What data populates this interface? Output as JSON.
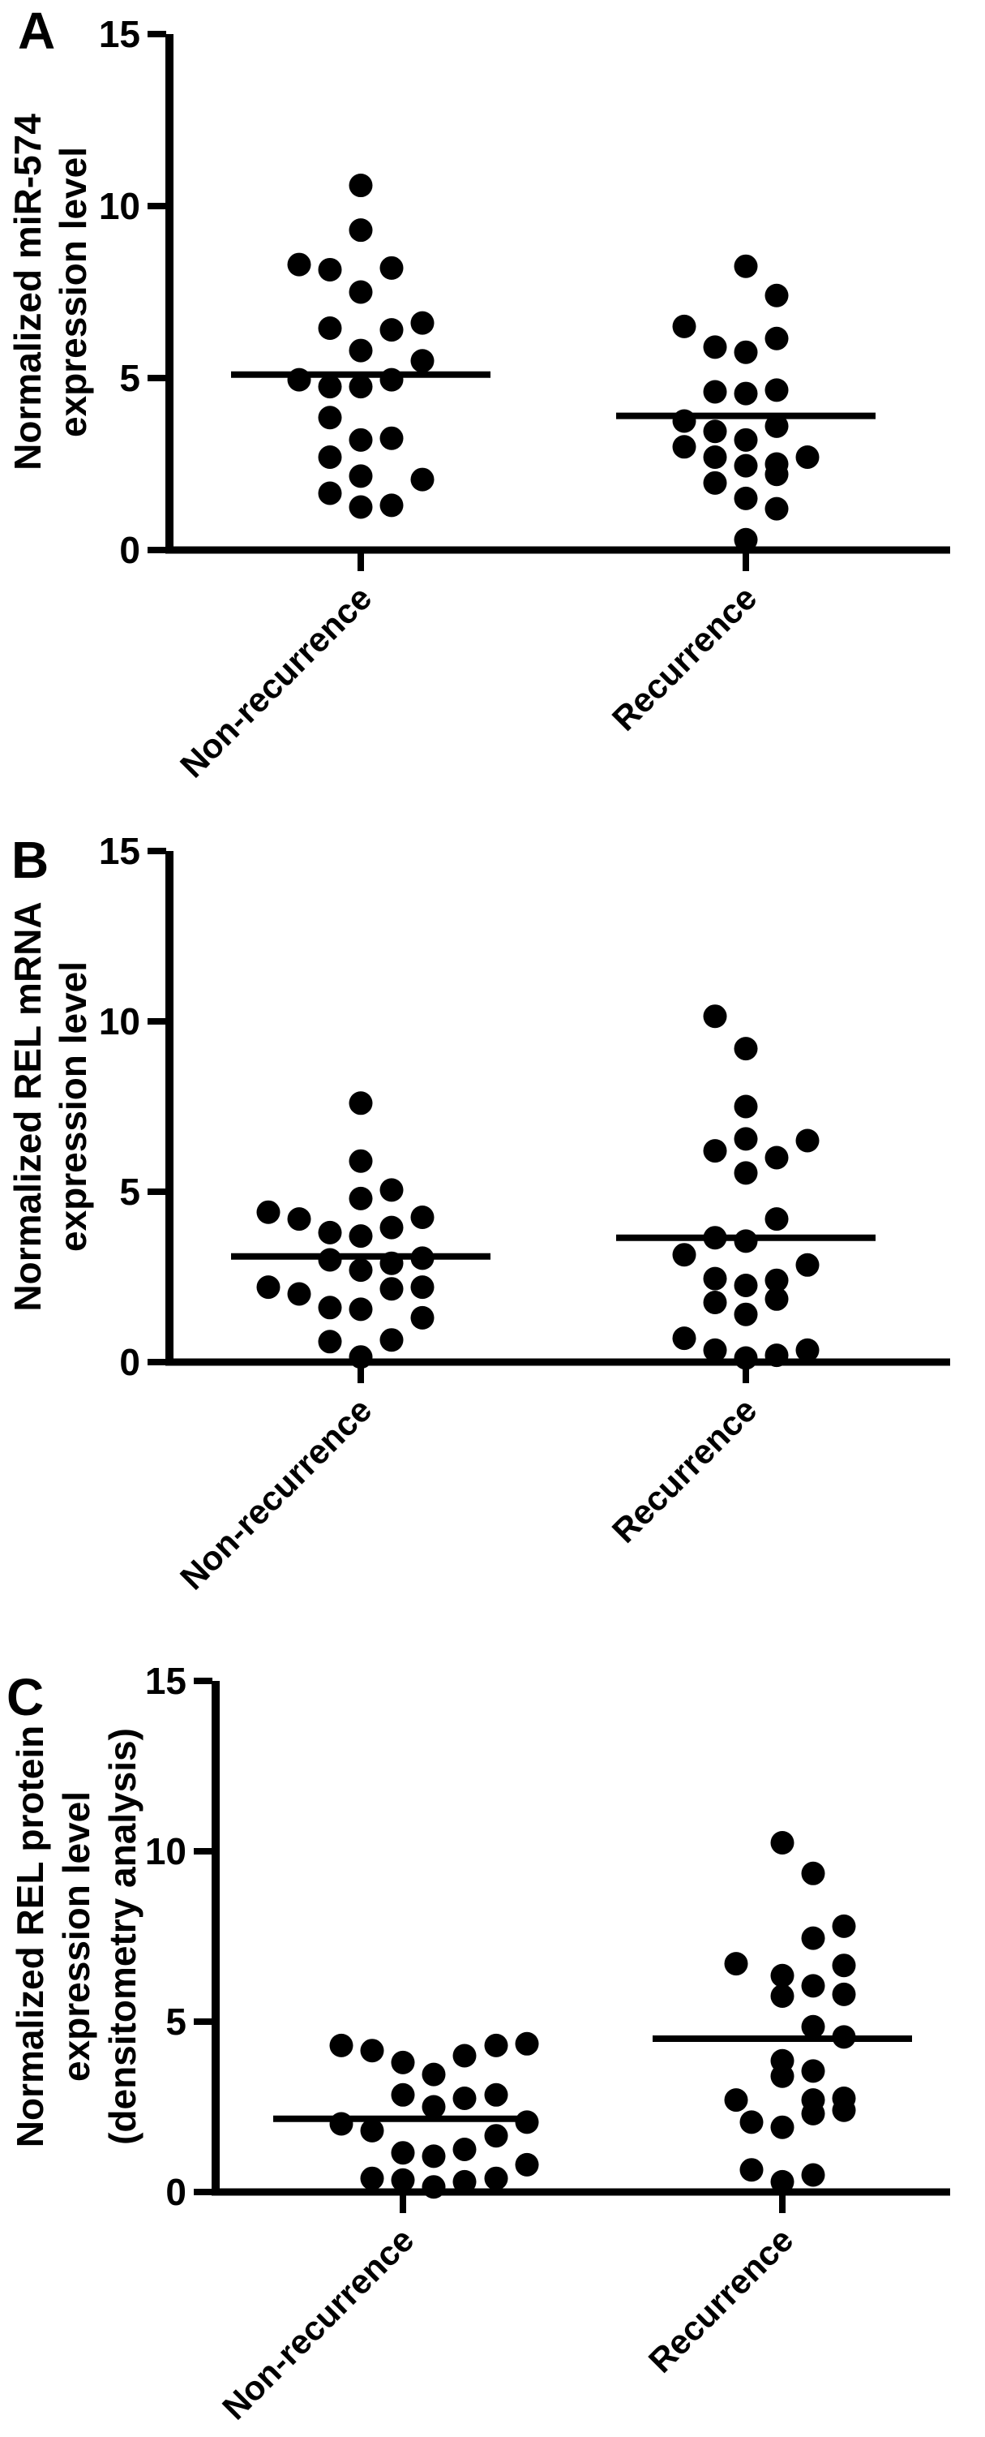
{
  "figure": {
    "description": "Three stacked dot-plot panels comparing expression levels between non-recurrence and recurrence groups",
    "panel_letters": [
      "A",
      "B",
      "C"
    ],
    "ink_color": "#000000",
    "background_color": "#ffffff"
  },
  "chart_data": [
    {
      "type": "scatter",
      "panel": "A",
      "ylabel": "Normalized miR-574 expression level",
      "ylabel_lines": [
        "Normalized miR-574",
        "expression level"
      ],
      "ylim": [
        0,
        15
      ],
      "yticks": [
        0,
        5,
        10,
        15
      ],
      "categories": [
        "Non-recurrence",
        "Recurrence"
      ],
      "point_color": "#000000",
      "series": [
        {
          "name": "Non-recurrence",
          "mean_line": 5.1,
          "points": [
            [
              0,
              10.6
            ],
            [
              0,
              9.3
            ],
            [
              -76,
              8.3
            ],
            [
              -38,
              8.15
            ],
            [
              38,
              8.2
            ],
            [
              0,
              7.5
            ],
            [
              -38,
              6.45
            ],
            [
              38,
              6.4
            ],
            [
              76,
              6.6
            ],
            [
              0,
              5.8
            ],
            [
              76,
              5.5
            ],
            [
              -76,
              4.95
            ],
            [
              -38,
              4.75
            ],
            [
              0,
              4.75
            ],
            [
              38,
              4.95
            ],
            [
              -38,
              3.85
            ],
            [
              0,
              3.2
            ],
            [
              38,
              3.25
            ],
            [
              -38,
              2.7
            ],
            [
              0,
              2.15
            ],
            [
              76,
              2.05
            ],
            [
              -38,
              1.65
            ],
            [
              0,
              1.25
            ],
            [
              38,
              1.3
            ]
          ]
        },
        {
          "name": "Recurrence",
          "mean_line": 3.9,
          "points": [
            [
              0,
              8.25
            ],
            [
              38,
              7.4
            ],
            [
              -76,
              6.5
            ],
            [
              38,
              6.15
            ],
            [
              -38,
              5.9
            ],
            [
              0,
              5.75
            ],
            [
              -38,
              4.6
            ],
            [
              0,
              4.55
            ],
            [
              38,
              4.65
            ],
            [
              -76,
              3.75
            ],
            [
              38,
              3.6
            ],
            [
              -38,
              3.45
            ],
            [
              0,
              3.2
            ],
            [
              -76,
              3.0
            ],
            [
              -38,
              2.7
            ],
            [
              76,
              2.7
            ],
            [
              38,
              2.5
            ],
            [
              0,
              2.45
            ],
            [
              38,
              2.2
            ],
            [
              -38,
              1.95
            ],
            [
              0,
              1.5
            ],
            [
              38,
              1.2
            ],
            [
              0,
              0.3
            ]
          ]
        }
      ]
    },
    {
      "type": "scatter",
      "panel": "B",
      "ylabel": "Normalized REL mRNA expression level",
      "ylabel_lines": [
        "Normalized REL mRNA",
        "expression level"
      ],
      "ylim": [
        0,
        15
      ],
      "yticks": [
        0,
        5,
        10,
        15
      ],
      "categories": [
        "Non-recurrence",
        "Recurrence"
      ],
      "point_color": "#000000",
      "series": [
        {
          "name": "Non-recurrence",
          "mean_line": 3.1,
          "points": [
            [
              0,
              7.6
            ],
            [
              0,
              5.9
            ],
            [
              38,
              5.05
            ],
            [
              0,
              4.8
            ],
            [
              -114,
              4.4
            ],
            [
              -76,
              4.2
            ],
            [
              76,
              4.25
            ],
            [
              38,
              3.95
            ],
            [
              -38,
              3.8
            ],
            [
              0,
              3.7
            ],
            [
              76,
              3.05
            ],
            [
              -38,
              3.0
            ],
            [
              38,
              2.9
            ],
            [
              0,
              2.7
            ],
            [
              -114,
              2.2
            ],
            [
              76,
              2.2
            ],
            [
              38,
              2.15
            ],
            [
              -76,
              2.0
            ],
            [
              -38,
              1.6
            ],
            [
              0,
              1.55
            ],
            [
              76,
              1.3
            ],
            [
              -38,
              0.6
            ],
            [
              38,
              0.65
            ],
            [
              0,
              0.15
            ]
          ]
        },
        {
          "name": "Recurrence",
          "mean_line": 3.65,
          "points": [
            [
              -38,
              10.15
            ],
            [
              0,
              9.2
            ],
            [
              0,
              7.5
            ],
            [
              0,
              6.55
            ],
            [
              76,
              6.5
            ],
            [
              -38,
              6.2
            ],
            [
              38,
              6.0
            ],
            [
              0,
              5.55
            ],
            [
              38,
              4.2
            ],
            [
              -38,
              3.65
            ],
            [
              0,
              3.55
            ],
            [
              -76,
              3.15
            ],
            [
              76,
              2.85
            ],
            [
              -38,
              2.45
            ],
            [
              38,
              2.4
            ],
            [
              0,
              2.25
            ],
            [
              38,
              1.85
            ],
            [
              -38,
              1.75
            ],
            [
              0,
              1.4
            ],
            [
              -76,
              0.7
            ],
            [
              -38,
              0.35
            ],
            [
              0,
              0.12
            ],
            [
              38,
              0.2
            ],
            [
              76,
              0.35
            ]
          ]
        }
      ]
    },
    {
      "type": "scatter",
      "panel": "C",
      "ylabel": "Normalized REL protein expression level (densitometry analysis)",
      "ylabel_lines": [
        "Normalized REL protein",
        "expression level",
        "(densitometry analysis)"
      ],
      "ylim": [
        0,
        15
      ],
      "yticks": [
        0,
        5,
        10,
        15
      ],
      "categories": [
        "Non-recurrence",
        "Recurrence"
      ],
      "point_color": "#000000",
      "series": [
        {
          "name": "Non-recurrence",
          "mean_line": 2.15,
          "points": [
            [
              -76,
              4.3
            ],
            [
              -38,
              4.15
            ],
            [
              0,
              3.8
            ],
            [
              38,
              3.45
            ],
            [
              76,
              4.0
            ],
            [
              115,
              4.3
            ],
            [
              153,
              4.35
            ],
            [
              0,
              2.85
            ],
            [
              38,
              2.5
            ],
            [
              76,
              2.75
            ],
            [
              115,
              2.85
            ],
            [
              -76,
              2.0
            ],
            [
              -38,
              1.8
            ],
            [
              153,
              2.05
            ],
            [
              0,
              1.15
            ],
            [
              38,
              1.05
            ],
            [
              76,
              1.25
            ],
            [
              115,
              1.65
            ],
            [
              153,
              0.8
            ],
            [
              -38,
              0.4
            ],
            [
              0,
              0.35
            ],
            [
              38,
              0.15
            ],
            [
              76,
              0.3
            ],
            [
              115,
              0.4
            ]
          ]
        },
        {
          "name": "Recurrence",
          "mean_line": 4.5,
          "points": [
            [
              0,
              10.25
            ],
            [
              38,
              9.35
            ],
            [
              76,
              7.8
            ],
            [
              38,
              7.45
            ],
            [
              -57,
              6.7
            ],
            [
              76,
              6.65
            ],
            [
              0,
              6.35
            ],
            [
              38,
              6.05
            ],
            [
              76,
              5.8
            ],
            [
              0,
              5.75
            ],
            [
              38,
              4.85
            ],
            [
              76,
              4.55
            ],
            [
              0,
              3.85
            ],
            [
              38,
              3.55
            ],
            [
              0,
              3.4
            ],
            [
              -57,
              2.7
            ],
            [
              38,
              2.7
            ],
            [
              76,
              2.75
            ],
            [
              76,
              2.4
            ],
            [
              -38,
              2.05
            ],
            [
              0,
              1.9
            ],
            [
              38,
              2.3
            ],
            [
              -38,
              0.65
            ],
            [
              0,
              0.3
            ],
            [
              38,
              0.5
            ]
          ]
        }
      ]
    }
  ]
}
